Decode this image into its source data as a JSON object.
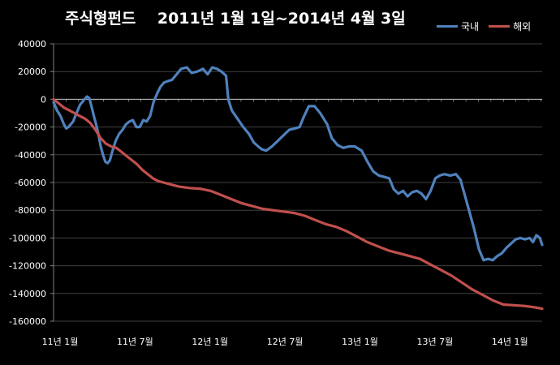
{
  "chart_data": {
    "type": "line",
    "title": "주식형펀드    2011년 1월 1일~2014년 4월 3일",
    "ylim": [
      -160000,
      40000
    ],
    "y_ticks": [
      40000,
      20000,
      0,
      -20000,
      -40000,
      -60000,
      -80000,
      -100000,
      -120000,
      -140000,
      -160000
    ],
    "y_tick_labels": [
      "40000",
      "20000",
      "0",
      "-20000",
      "-40000",
      "-60000",
      "-80000",
      "-100000",
      "-120000",
      "-140000",
      "-160000"
    ],
    "x_tick_labels": [
      "11년 1월",
      "11년 7월",
      "12년 1월",
      "12년 7월",
      "13년 1월",
      "13년 7월",
      "14년 1월"
    ],
    "x_tick_months": [
      0,
      6,
      12,
      18,
      24,
      30,
      36
    ],
    "x_range_months": [
      0,
      39.1
    ],
    "gridlines": "horizontal",
    "legend_position": "top-right",
    "series": [
      {
        "name": "국내",
        "color": "#4f81bd",
        "points": [
          [
            0,
            -2000
          ],
          [
            0.3,
            -8000
          ],
          [
            0.6,
            -12000
          ],
          [
            0.9,
            -18000
          ],
          [
            1.1,
            -21000
          ],
          [
            1.3,
            -20000
          ],
          [
            1.5,
            -18000
          ],
          [
            1.7,
            -16000
          ],
          [
            1.9,
            -12000
          ],
          [
            2.1,
            -8000
          ],
          [
            2.3,
            -4000
          ],
          [
            2.5,
            -2000
          ],
          [
            2.7,
            0
          ],
          [
            2.9,
            2000
          ],
          [
            3.1,
            1000
          ],
          [
            3.3,
            -5000
          ],
          [
            3.5,
            -12000
          ],
          [
            3.7,
            -18000
          ],
          [
            3.9,
            -25000
          ],
          [
            4.1,
            -34000
          ],
          [
            4.3,
            -40000
          ],
          [
            4.5,
            -45000
          ],
          [
            4.7,
            -46000
          ],
          [
            4.9,
            -44000
          ],
          [
            5.1,
            -38000
          ],
          [
            5.4,
            -30000
          ],
          [
            5.7,
            -25000
          ],
          [
            6.0,
            -22000
          ],
          [
            6.3,
            -18000
          ],
          [
            6.6,
            -16000
          ],
          [
            6.9,
            -15000
          ],
          [
            7.2,
            -20000
          ],
          [
            7.5,
            -20000
          ],
          [
            7.8,
            -15000
          ],
          [
            8.1,
            -16000
          ],
          [
            8.4,
            -12000
          ],
          [
            8.7,
            -2000
          ],
          [
            9.0,
            4000
          ],
          [
            9.3,
            9000
          ],
          [
            9.6,
            12000
          ],
          [
            9.9,
            13000
          ],
          [
            10.3,
            14000
          ],
          [
            10.7,
            18000
          ],
          [
            11.1,
            22000
          ],
          [
            11.6,
            23000
          ],
          [
            12.0,
            19000
          ],
          [
            12.5,
            20000
          ],
          [
            13.0,
            22000
          ],
          [
            13.4,
            18000
          ],
          [
            13.8,
            23000
          ],
          [
            14.2,
            22000
          ],
          [
            14.6,
            20000
          ],
          [
            15.0,
            17000
          ],
          [
            15.2,
            0
          ],
          [
            15.5,
            -8000
          ],
          [
            16.0,
            -14000
          ],
          [
            16.5,
            -20000
          ],
          [
            17.0,
            -25000
          ],
          [
            17.4,
            -31000
          ],
          [
            17.8,
            -34000
          ],
          [
            18.1,
            -36000
          ],
          [
            18.5,
            -37000
          ],
          [
            19.0,
            -34000
          ],
          [
            19.5,
            -30000
          ],
          [
            20.0,
            -26000
          ],
          [
            20.5,
            -22000
          ],
          [
            21.0,
            -21000
          ],
          [
            21.4,
            -20000
          ],
          [
            21.8,
            -12000
          ],
          [
            22.2,
            -5000
          ],
          [
            22.7,
            -5000
          ],
          [
            23.2,
            -10000
          ],
          [
            23.8,
            -18000
          ],
          [
            24.2,
            -28000
          ],
          [
            24.7,
            -33000
          ],
          [
            25.2,
            -35000
          ],
          [
            25.7,
            -34000
          ],
          [
            26.2,
            -34000
          ],
          [
            26.8,
            -37000
          ],
          [
            27.3,
            -45000
          ],
          [
            27.8,
            -52000
          ],
          [
            28.3,
            -55000
          ],
          [
            28.8,
            -56000
          ],
          [
            29.2,
            -57000
          ],
          [
            29.6,
            -65000
          ],
          [
            30.0,
            -68000
          ],
          [
            30.4,
            -66000
          ],
          [
            30.8,
            -70000
          ],
          [
            31.2,
            -67000
          ],
          [
            31.6,
            -66000
          ],
          [
            32.0,
            -68000
          ],
          [
            32.4,
            -72000
          ],
          [
            32.8,
            -66000
          ],
          [
            33.2,
            -57000
          ],
          [
            33.6,
            -55000
          ],
          [
            34.0,
            -54000
          ],
          [
            34.5,
            -55000
          ],
          [
            35.0,
            -54000
          ],
          [
            35.4,
            -58000
          ],
          [
            35.8,
            -70000
          ],
          [
            36.2,
            -82000
          ],
          [
            36.6,
            -94000
          ],
          [
            37.0,
            -108000
          ],
          [
            37.4,
            -116000
          ],
          [
            37.8,
            -115000
          ],
          [
            38.2,
            -116000
          ],
          [
            38.6,
            -113000
          ],
          [
            39.0,
            -111000
          ],
          [
            39.4,
            -107000
          ],
          [
            39.8,
            -104000
          ],
          [
            40.2,
            -101000
          ],
          [
            40.6,
            -100000
          ],
          [
            41.0,
            -101000
          ],
          [
            41.4,
            -100000
          ],
          [
            41.7,
            -103000
          ],
          [
            42.0,
            -98000
          ],
          [
            42.3,
            -100000
          ],
          [
            42.5,
            -105000
          ]
        ]
      },
      {
        "name": "해외",
        "color": "#c0504d",
        "points": [
          [
            0,
            0
          ],
          [
            0.5,
            -3000
          ],
          [
            1.0,
            -6000
          ],
          [
            1.5,
            -8000
          ],
          [
            2.0,
            -10000
          ],
          [
            2.5,
            -12000
          ],
          [
            3.0,
            -14000
          ],
          [
            3.5,
            -17000
          ],
          [
            4.0,
            -22000
          ],
          [
            4.5,
            -28000
          ],
          [
            5.0,
            -32000
          ],
          [
            5.5,
            -34000
          ],
          [
            6.0,
            -35000
          ],
          [
            6.5,
            -38000
          ],
          [
            7.0,
            -41000
          ],
          [
            7.5,
            -44000
          ],
          [
            8.0,
            -47000
          ],
          [
            8.5,
            -51000
          ],
          [
            9.0,
            -54000
          ],
          [
            9.5,
            -57000
          ],
          [
            10.0,
            -59000
          ],
          [
            10.5,
            -60000
          ],
          [
            11.0,
            -61000
          ],
          [
            11.5,
            -62000
          ],
          [
            12.0,
            -63000
          ],
          [
            13.0,
            -64000
          ],
          [
            14.0,
            -64500
          ],
          [
            15.0,
            -66000
          ],
          [
            16.0,
            -69000
          ],
          [
            17.0,
            -72000
          ],
          [
            18.0,
            -75000
          ],
          [
            19.0,
            -77000
          ],
          [
            20.0,
            -79000
          ],
          [
            21.0,
            -80000
          ],
          [
            22.0,
            -81000
          ],
          [
            23.0,
            -82000
          ],
          [
            24.0,
            -84000
          ],
          [
            25.0,
            -87000
          ],
          [
            26.0,
            -90000
          ],
          [
            27.0,
            -92000
          ],
          [
            28.0,
            -95000
          ],
          [
            29.0,
            -99000
          ],
          [
            30.0,
            -103000
          ],
          [
            31.0,
            -106000
          ],
          [
            32.0,
            -109000
          ],
          [
            33.0,
            -111000
          ],
          [
            34.0,
            -113000
          ],
          [
            35.0,
            -115000
          ],
          [
            36.0,
            -119000
          ],
          [
            37.0,
            -123000
          ],
          [
            38.0,
            -127000
          ],
          [
            39.0,
            -132000
          ],
          [
            40.0,
            -137000
          ],
          [
            41.0,
            -141000
          ],
          [
            42.0,
            -145000
          ],
          [
            43.0,
            -148000
          ],
          [
            44.0,
            -148500
          ],
          [
            45.0,
            -149000
          ],
          [
            46.0,
            -150000
          ],
          [
            46.7,
            -151000
          ]
        ]
      }
    ]
  }
}
